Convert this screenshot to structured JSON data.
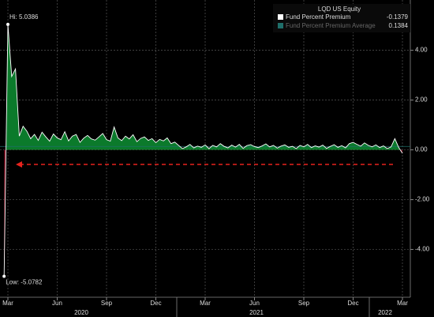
{
  "chart_data": {
    "type": "area",
    "legend_title": "LQD US Equity",
    "categories": [
      null,
      "Mar",
      null,
      null,
      null,
      null,
      null,
      null,
      null,
      null,
      null,
      null,
      null,
      null,
      "Jun",
      null,
      null,
      null,
      null,
      null,
      null,
      null,
      null,
      null,
      null,
      null,
      null,
      "Sep",
      null,
      null,
      null,
      null,
      null,
      null,
      null,
      null,
      null,
      null,
      null,
      null,
      "Dec",
      null,
      null,
      null,
      null,
      null,
      null,
      null,
      null,
      null,
      null,
      null,
      null,
      "Mar",
      null,
      null,
      null,
      null,
      null,
      null,
      null,
      null,
      null,
      null,
      null,
      null,
      "Jun",
      null,
      null,
      null,
      null,
      null,
      null,
      null,
      null,
      null,
      null,
      null,
      null,
      "Sep",
      null,
      null,
      null,
      null,
      null,
      null,
      null,
      null,
      null,
      null,
      null,
      null,
      "Dec",
      null,
      null,
      null,
      null,
      null,
      null,
      null,
      null,
      null,
      null,
      null,
      null,
      "Mar"
    ],
    "years": [
      "2020",
      "2021",
      "2022"
    ],
    "series": [
      {
        "name": "Fund Percent Premium",
        "color": "#ffffff",
        "positive_fill": "#0b7a2b",
        "negative_fill": "#7a1224",
        "values": [
          -5.0782,
          5.0386,
          2.95,
          3.25,
          0.55,
          0.95,
          0.75,
          0.45,
          0.62,
          0.38,
          0.71,
          0.52,
          0.35,
          0.64,
          0.48,
          0.41,
          0.73,
          0.36,
          0.55,
          0.62,
          0.3,
          0.47,
          0.58,
          0.44,
          0.39,
          0.52,
          0.66,
          0.41,
          0.35,
          0.92,
          0.48,
          0.37,
          0.55,
          0.44,
          0.61,
          0.33,
          0.46,
          0.52,
          0.38,
          0.45,
          0.29,
          0.42,
          0.36,
          0.48,
          0.25,
          0.31,
          0.18,
          0.05,
          0.12,
          0.22,
          0.08,
          0.15,
          0.1,
          0.2,
          0.05,
          0.18,
          0.12,
          0.25,
          0.14,
          0.08,
          0.19,
          0.11,
          0.22,
          0.06,
          0.17,
          0.21,
          0.13,
          0.09,
          0.16,
          0.24,
          0.12,
          0.18,
          0.07,
          0.15,
          0.2,
          0.1,
          0.14,
          0.05,
          0.18,
          0.12,
          0.22,
          0.09,
          0.16,
          0.11,
          0.19,
          0.06,
          0.14,
          0.21,
          0.1,
          0.17,
          0.08,
          0.25,
          0.3,
          0.22,
          0.15,
          0.28,
          0.18,
          0.12,
          0.2,
          0.09,
          0.16,
          0.05,
          0.12,
          0.45,
          0.1,
          -0.1379
        ]
      },
      {
        "name": "Fund Percent Premium Average",
        "color": "#1f6f6a",
        "value": 0.1384
      }
    ],
    "annotations": [
      "Hi: 5.0386",
      "Low: -5.0782"
    ],
    "ylim": [
      -5.92,
      6.02
    ],
    "yticks": [
      {
        "value": 4,
        "label": "4.00"
      },
      {
        "value": 2,
        "label": "2.00"
      },
      {
        "value": 0,
        "label": "0.00"
      },
      {
        "value": -2,
        "label": "-2.00"
      },
      {
        "value": -4,
        "label": "-4.00"
      }
    ],
    "grid": true
  }
}
